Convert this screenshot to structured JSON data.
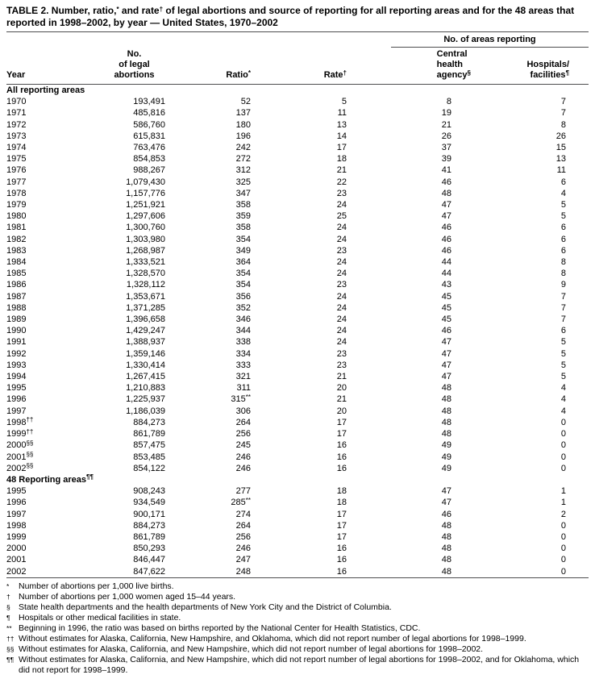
{
  "title": "TABLE 2. Number, ratio,^{*} and rate^{†} of legal abortions and source of reporting for all reporting areas and for the 48 areas that\nreported in 1998–2002, by year — United States, 1970–2002",
  "table": {
    "group_header": "No. of areas reporting",
    "columns": [
      "Year",
      "No.\nof legal\nabortions",
      "Ratio^{*}",
      "Rate^{†}",
      "Central\nhealth\nagency^{§}",
      "Hospitals/\nfacilities^{¶}"
    ],
    "sections": [
      {
        "label": "All reporting areas",
        "rows": [
          [
            "1970",
            "193,491",
            "52",
            "5",
            "8",
            "7"
          ],
          [
            "1971",
            "485,816",
            "137",
            "11",
            "19",
            "7"
          ],
          [
            "1972",
            "586,760",
            "180",
            "13",
            "21",
            "8"
          ],
          [
            "1973",
            "615,831",
            "196",
            "14",
            "26",
            "26"
          ],
          [
            "1974",
            "763,476",
            "242",
            "17",
            "37",
            "15"
          ],
          [
            "1975",
            "854,853",
            "272",
            "18",
            "39",
            "13"
          ],
          [
            "1976",
            "988,267",
            "312",
            "21",
            "41",
            "11"
          ],
          [
            "1977",
            "1,079,430",
            "325",
            "22",
            "46",
            "6"
          ],
          [
            "1978",
            "1,157,776",
            "347",
            "23",
            "48",
            "4"
          ],
          [
            "1979",
            "1,251,921",
            "358",
            "24",
            "47",
            "5"
          ],
          [
            "1980",
            "1,297,606",
            "359",
            "25",
            "47",
            "5"
          ],
          [
            "1981",
            "1,300,760",
            "358",
            "24",
            "46",
            "6"
          ],
          [
            "1982",
            "1,303,980",
            "354",
            "24",
            "46",
            "6"
          ],
          [
            "1983",
            "1,268,987",
            "349",
            "23",
            "46",
            "6"
          ],
          [
            "1984",
            "1,333,521",
            "364",
            "24",
            "44",
            "8"
          ],
          [
            "1985",
            "1,328,570",
            "354",
            "24",
            "44",
            "8"
          ],
          [
            "1986",
            "1,328,112",
            "354",
            "23",
            "43",
            "9"
          ],
          [
            "1987",
            "1,353,671",
            "356",
            "24",
            "45",
            "7"
          ],
          [
            "1988",
            "1,371,285",
            "352",
            "24",
            "45",
            "7"
          ],
          [
            "1989",
            "1,396,658",
            "346",
            "24",
            "45",
            "7"
          ],
          [
            "1990",
            "1,429,247",
            "344",
            "24",
            "46",
            "6"
          ],
          [
            "1991",
            "1,388,937",
            "338",
            "24",
            "47",
            "5"
          ],
          [
            "1992",
            "1,359,146",
            "334",
            "23",
            "47",
            "5"
          ],
          [
            "1993",
            "1,330,414",
            "333",
            "23",
            "47",
            "5"
          ],
          [
            "1994",
            "1,267,415",
            "321",
            "21",
            "47",
            "5"
          ],
          [
            "1995",
            "1,210,883",
            "311",
            "20",
            "48",
            "4"
          ],
          [
            "1996",
            "1,225,937",
            "315^{**}",
            "21",
            "48",
            "4"
          ],
          [
            "1997",
            "1,186,039",
            "306",
            "20",
            "48",
            "4"
          ],
          [
            "1998^{††}",
            "884,273",
            "264",
            "17",
            "48",
            "0"
          ],
          [
            "1999^{††}",
            "861,789",
            "256",
            "17",
            "48",
            "0"
          ],
          [
            "2000^{§§}",
            "857,475",
            "245",
            "16",
            "49",
            "0"
          ],
          [
            "2001^{§§}",
            "853,485",
            "246",
            "16",
            "49",
            "0"
          ],
          [
            "2002^{§§}",
            "854,122",
            "246",
            "16",
            "49",
            "0"
          ]
        ]
      },
      {
        "label": "48 Reporting areas^{¶¶}",
        "rows": [
          [
            "1995",
            "908,243",
            "277",
            "18",
            "47",
            "1"
          ],
          [
            "1996",
            "934,549",
            "285^{**}",
            "18",
            "47",
            "1"
          ],
          [
            "1997",
            "900,171",
            "274",
            "17",
            "46",
            "2"
          ],
          [
            "1998",
            "884,273",
            "264",
            "17",
            "48",
            "0"
          ],
          [
            "1999",
            "861,789",
            "256",
            "17",
            "48",
            "0"
          ],
          [
            "2000",
            "850,293",
            "246",
            "16",
            "48",
            "0"
          ],
          [
            "2001",
            "846,447",
            "247",
            "16",
            "48",
            "0"
          ],
          [
            "2002",
            "847,622",
            "248",
            "16",
            "48",
            "0"
          ]
        ]
      }
    ]
  },
  "footnotes": [
    {
      "symbol": "*",
      "text": "Number of abortions per 1,000 live births."
    },
    {
      "symbol": "†",
      "text": "Number of abortions per 1,000 women aged 15–44 years."
    },
    {
      "symbol": "§",
      "text": "State health departments and the health departments of New York City and the District of Columbia."
    },
    {
      "symbol": "¶",
      "text": "Hospitals or other medical facilities in state."
    },
    {
      "symbol": "**",
      "text": "Beginning in 1996, the ratio was based on births reported by the National Center for Health Statistics, CDC."
    },
    {
      "symbol": "††",
      "text": "Without estimates for Alaska, California, New Hampshire, and Oklahoma, which did not report number of legal abortions for 1998–1999."
    },
    {
      "symbol": "§§",
      "text": "Without estimates for Alaska, California, and New Hampshire, which did not report number of legal abortions for 1998–2002."
    },
    {
      "symbol": "¶¶",
      "text": "Without estimates for Alaska, California, and New Hampshire, which did not report number of legal abortions for 1998–2002, and for Oklahoma, which did not report for 1998–1999."
    }
  ]
}
